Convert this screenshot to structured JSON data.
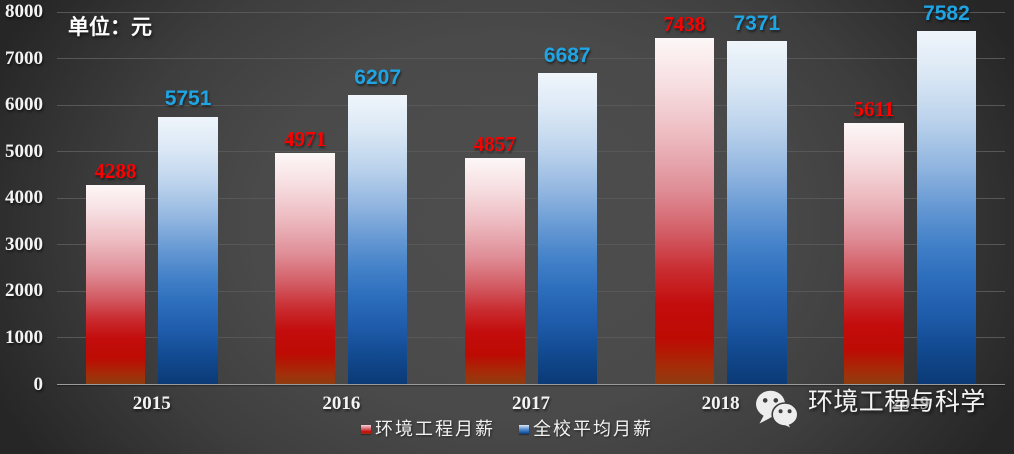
{
  "unit_label": "单位：元",
  "watermark": {
    "icon": "wechat-icon",
    "text": "环境工程与科学"
  },
  "colors": {
    "background_center": "#4a4a4a",
    "background_edge": "#262626",
    "gridline": "#5a5a5a",
    "axis_line": "#9b9b9b",
    "axis_text": "#f3f3f3",
    "red_series_bar": "#c00000",
    "blue_series_bar": "#1f5fad",
    "red_value_label": "#fe0000",
    "blue_value_label": "#1fa4e4",
    "legend_text": "#f2f2f2",
    "watermark_text": "#f4f4f4"
  },
  "chart_data": {
    "type": "bar",
    "title": "",
    "unit_label": "单位：元",
    "categories": [
      "2015",
      "2016",
      "2017",
      "2018",
      "2019"
    ],
    "series": [
      {
        "name": "环境工程月薪",
        "color": "#c00000",
        "label_color": "#fe0000",
        "values": [
          4288,
          4971,
          4857,
          7438,
          5611
        ]
      },
      {
        "name": "全校平均月薪",
        "color": "#1f5fad",
        "label_color": "#1fa4e4",
        "values": [
          5751,
          6207,
          6687,
          7371,
          7582
        ]
      }
    ],
    "ylim": [
      0,
      8000
    ],
    "ytick_step": 1000,
    "ytick_labels": [
      "0",
      "1000",
      "2000",
      "3000",
      "4000",
      "5000",
      "6000",
      "7000",
      "8000"
    ],
    "grid": true,
    "legend_position": "bottom",
    "legend_entries": [
      "环境工程月薪",
      "全校平均月薪"
    ]
  }
}
